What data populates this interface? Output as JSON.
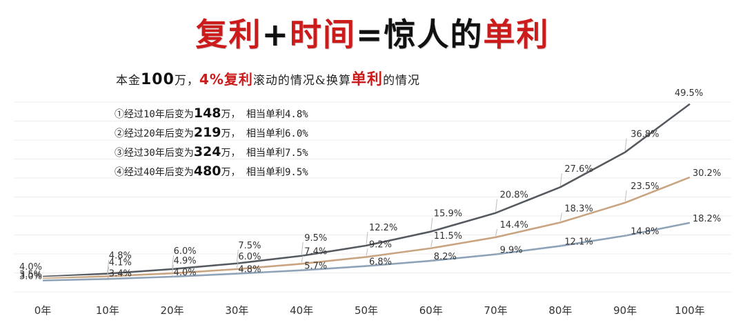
{
  "title": {
    "part1": "复利",
    "plus": "+",
    "part2": "时间",
    "eq": "=",
    "part3": "惊人的",
    "part4": "单利"
  },
  "subtitle": {
    "p1": "本金",
    "p2": "100",
    "p3": "万，",
    "p4": "4%复利",
    "p5": "滚动的情况&换算",
    "p6": "单利",
    "p7": "的情况"
  },
  "notes": [
    {
      "prefix": "①经过10年后变为",
      "amount": "148",
      "suffix": "万， 相当单利4.8%"
    },
    {
      "prefix": "②经过20年后变为",
      "amount": "219",
      "suffix": "万， 相当单利6.0%"
    },
    {
      "prefix": "③经过30年后变为",
      "amount": "324",
      "suffix": "万， 相当单利7.5%"
    },
    {
      "prefix": "④经过40年后变为",
      "amount": "480",
      "suffix": "万， 相当单利9.5%"
    }
  ],
  "chart_data": {
    "type": "line",
    "categories": [
      "0年",
      "10年",
      "20年",
      "30年",
      "40年",
      "50年",
      "60年",
      "70年",
      "80年",
      "90年",
      "100年"
    ],
    "x": [
      0,
      10,
      20,
      30,
      40,
      50,
      60,
      70,
      80,
      90,
      100
    ],
    "ylim": [
      0,
      50
    ],
    "grid": true,
    "series": [
      {
        "color": "#555a60",
        "values": [
          4.0,
          4.8,
          6.0,
          7.5,
          9.5,
          12.2,
          15.9,
          20.8,
          27.6,
          36.8,
          49.5
        ],
        "labels": [
          "4.0%",
          "4.8%",
          "6.0%",
          "7.5%",
          "9.5%",
          "12.2%",
          "15.9%",
          "20.8%",
          "27.6%",
          "36.8%",
          "49.5%"
        ]
      },
      {
        "color": "#c9a481",
        "values": [
          3.5,
          4.1,
          4.9,
          6.0,
          7.4,
          9.2,
          11.5,
          14.4,
          18.3,
          23.5,
          30.2
        ],
        "labels": [
          "3.5%",
          "4.1%",
          "4.9%",
          "6.0%",
          "7.4%",
          "9.2%",
          "11.5%",
          "14.4%",
          "18.3%",
          "23.5%",
          "30.2%"
        ]
      },
      {
        "color": "#8ea2b8",
        "values": [
          3.0,
          3.4,
          4.0,
          4.8,
          5.7,
          6.8,
          8.2,
          9.9,
          12.1,
          14.8,
          18.2
        ],
        "labels": [
          "3.0%",
          "3.4%",
          "4.0%",
          "4.8%",
          "5.7%",
          "6.8%",
          "8.2%",
          "9.9%",
          "12.1%",
          "14.8%",
          "18.2%"
        ]
      }
    ]
  }
}
